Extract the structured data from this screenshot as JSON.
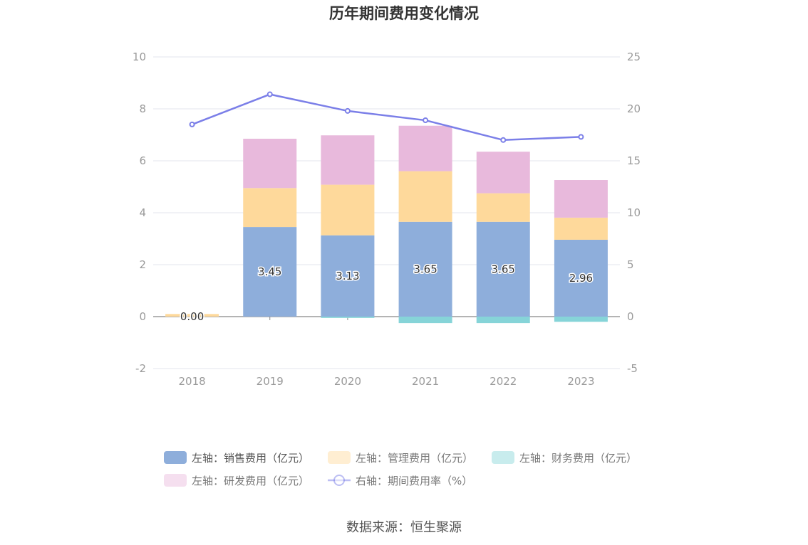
{
  "chart_data": {
    "type": "bar",
    "title": "历年期间费用变化情况",
    "categories": [
      "2018",
      "2019",
      "2020",
      "2021",
      "2022",
      "2023"
    ],
    "y_left": {
      "min": -2,
      "max": 10,
      "ticks": [
        "-2",
        "0",
        "2",
        "4",
        "6",
        "8",
        "10"
      ]
    },
    "y_right": {
      "min": -5,
      "max": 25,
      "ticks": [
        "-5",
        "0",
        "5",
        "10",
        "15",
        "20",
        "25"
      ]
    },
    "series": [
      {
        "name": "左轴：销售费用（亿元）",
        "axis": "left",
        "type": "bar",
        "color": "#8eaedb",
        "values": [
          0.0,
          3.45,
          3.13,
          3.65,
          3.65,
          2.96
        ],
        "labels": [
          "0.00",
          "3.45",
          "3.13",
          "3.65",
          "3.65",
          "2.96"
        ]
      },
      {
        "name": "左轴：管理费用（亿元）",
        "axis": "left",
        "type": "bar",
        "color": "#fed99b",
        "values": [
          0.1,
          1.5,
          1.95,
          1.95,
          1.1,
          0.85
        ]
      },
      {
        "name": "左轴：财务费用（亿元）",
        "axis": "left",
        "type": "bar",
        "color": "#86d4d8",
        "values": [
          0.0,
          0.0,
          -0.05,
          -0.25,
          -0.25,
          -0.2
        ]
      },
      {
        "name": "左轴：研发费用（亿元）",
        "axis": "left",
        "type": "bar",
        "color": "#e8b9dc",
        "values": [
          0.0,
          1.9,
          1.9,
          1.75,
          1.6,
          1.45
        ]
      },
      {
        "name": "右轴：期间费用率（%）",
        "axis": "right",
        "type": "line",
        "color": "#7b7fe8",
        "values": [
          18.5,
          21.4,
          19.8,
          18.9,
          17.0,
          17.3
        ]
      }
    ],
    "legend_position": "bottom",
    "grid": true
  },
  "source": "数据来源：恒生聚源"
}
